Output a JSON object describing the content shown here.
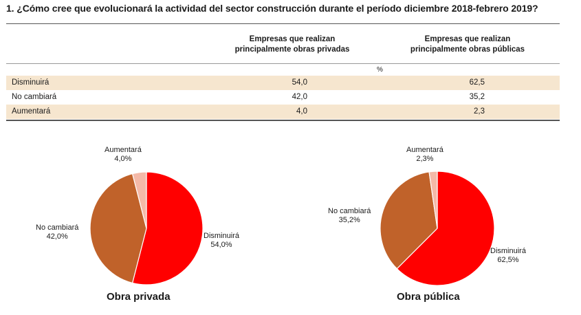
{
  "title": "1. ¿Cómo cree que evolucionará la actividad del sector construcción durante el período diciembre 2018-febrero 2019?",
  "table": {
    "headers": [
      [
        "Empresas que realizan",
        "principalmente obras privadas"
      ],
      [
        "Empresas que realizan",
        "principalmente obras públicas"
      ]
    ],
    "unit": "%",
    "rows": [
      {
        "label": "Disminuirá",
        "v1": "54,0",
        "v2": "62,5"
      },
      {
        "label": "No cambiará",
        "v1": "42,0",
        "v2": "35,2"
      },
      {
        "label": "Aumentará",
        "v1": "4,0",
        "v2": "2,3"
      }
    ]
  },
  "colors": {
    "disminuira": "#ff0000",
    "no_cambiara": "#c0622a",
    "aumentara": "#f4b9a8"
  },
  "chart_data": [
    {
      "type": "pie",
      "title": "Obra privada",
      "categories": [
        "Disminuirá",
        "No cambiará",
        "Aumentará"
      ],
      "values": [
        54.0,
        42.0,
        4.0
      ],
      "value_labels": [
        "54,0%",
        "42,0%",
        "4,0%"
      ]
    },
    {
      "type": "pie",
      "title": "Obra pública",
      "categories": [
        "Disminuirá",
        "No cambiará",
        "Aumentará"
      ],
      "values": [
        62.5,
        35.2,
        2.3
      ],
      "value_labels": [
        "62,5%",
        "35,2%",
        "2,3%"
      ]
    }
  ]
}
